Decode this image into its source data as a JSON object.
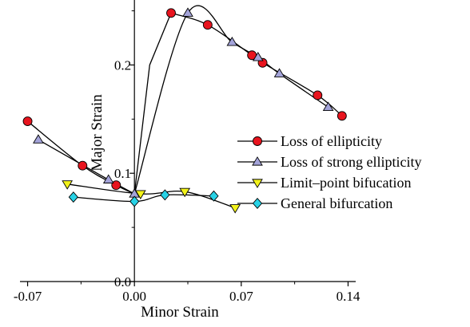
{
  "chart_data": {
    "type": "scatter",
    "title": "",
    "xlabel": "Minor Strain",
    "ylabel": "Major Strain",
    "xlim": [
      -0.075,
      0.145
    ],
    "ylim": [
      0.0,
      0.26
    ],
    "xticks": [
      -0.07,
      0.0,
      0.07,
      0.14
    ],
    "xtick_labels": [
      "-0.07",
      "0.00",
      "0.07",
      "0.14"
    ],
    "yticks": [
      0.0,
      0.1,
      0.2
    ],
    "ytick_labels": [
      "0.0",
      "0.1",
      "0.2"
    ],
    "grid": false,
    "legend_position": "right",
    "series": [
      {
        "name": "Loss of ellipticity",
        "marker": "circle",
        "color": "#e8141e",
        "x": [
          -0.07,
          -0.034,
          -0.012,
          0.024,
          0.048,
          0.077,
          0.084,
          0.12,
          0.136
        ],
        "y": [
          0.148,
          0.107,
          0.089,
          0.248,
          0.237,
          0.209,
          0.202,
          0.172,
          0.153
        ]
      },
      {
        "name": "Loss of strong ellipticity",
        "marker": "triangle-up",
        "color": "#a3a3d9",
        "x": [
          -0.063,
          -0.017,
          0.0,
          0.035,
          0.064,
          0.081,
          0.095,
          0.127
        ],
        "y": [
          0.131,
          0.094,
          0.081,
          0.248,
          0.221,
          0.207,
          0.192,
          0.161
        ]
      },
      {
        "name": "Limit–point bifucation",
        "marker": "triangle-down",
        "color": "#f2f21a",
        "x": [
          -0.044,
          0.004,
          0.033,
          0.066
        ],
        "y": [
          0.09,
          0.081,
          0.083,
          0.068
        ]
      },
      {
        "name": "General bifurcation",
        "marker": "diamond",
        "color": "#28d2e6",
        "x": [
          -0.04,
          0.0,
          0.02,
          0.052
        ],
        "y": [
          0.078,
          0.074,
          0.08,
          0.079
        ]
      }
    ]
  }
}
